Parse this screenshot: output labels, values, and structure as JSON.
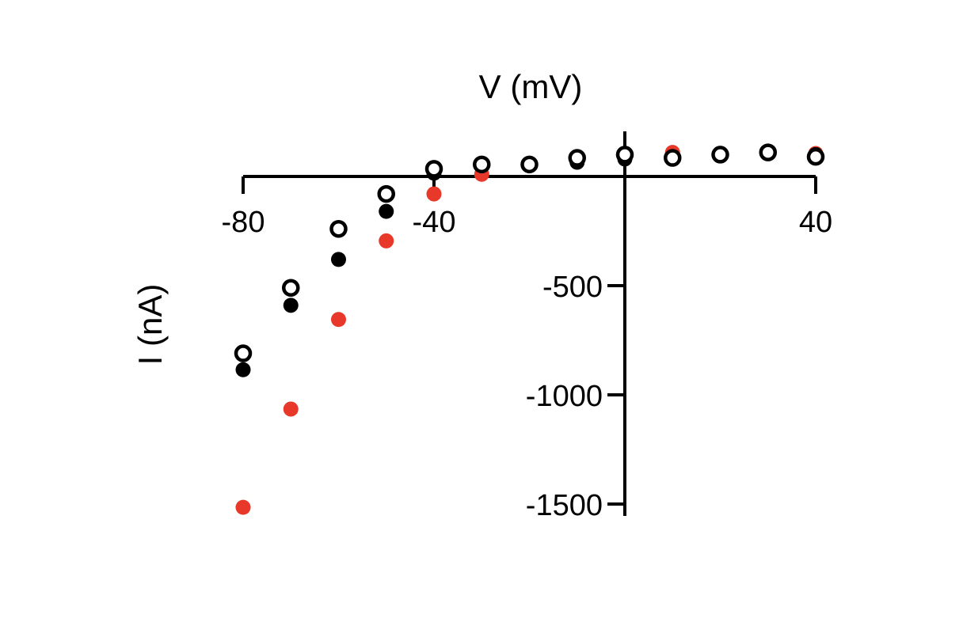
{
  "chart_data": {
    "type": "scatter",
    "xlabel": "V (mV)",
    "ylabel": "I (nA)",
    "xlim": [
      -80,
      40
    ],
    "ylim": [
      -1500,
      100
    ],
    "x_ticks": [
      -80,
      -40,
      40
    ],
    "x_tick_labels": [
      "-80",
      "-40",
      "40"
    ],
    "y_ticks": [
      -500,
      -1000,
      -1500
    ],
    "y_tick_labels": [
      "-500",
      "-1000",
      "-1500"
    ],
    "grid": false,
    "legend": "none",
    "series": [
      {
        "marker": "open-circle",
        "color": "#000000",
        "x": [
          -80,
          -70,
          -60,
          -50,
          -40,
          -30,
          -20,
          -10,
          0,
          10,
          20,
          30,
          40
        ],
        "y": [
          -810,
          -510,
          -240,
          -80,
          35,
          55,
          55,
          85,
          100,
          85,
          100,
          110,
          90
        ]
      },
      {
        "marker": "filled-circle",
        "color": "#000000",
        "x": [
          -80,
          -70,
          -60,
          -50,
          -40,
          -30,
          -20,
          -10,
          0,
          10,
          20,
          30,
          40
        ],
        "y": [
          -885,
          -590,
          -380,
          -160,
          15,
          55,
          55,
          65,
          80,
          80,
          105,
          115,
          100
        ]
      },
      {
        "marker": "filled-circle",
        "color": "#e8382a",
        "x": [
          -80,
          -70,
          -60,
          -50,
          -40,
          -30,
          -20,
          -10,
          0,
          10,
          20,
          30,
          40
        ],
        "y": [
          -1515,
          -1065,
          -655,
          -295,
          -80,
          10,
          55,
          70,
          100,
          110,
          105,
          115,
          105
        ]
      }
    ]
  }
}
